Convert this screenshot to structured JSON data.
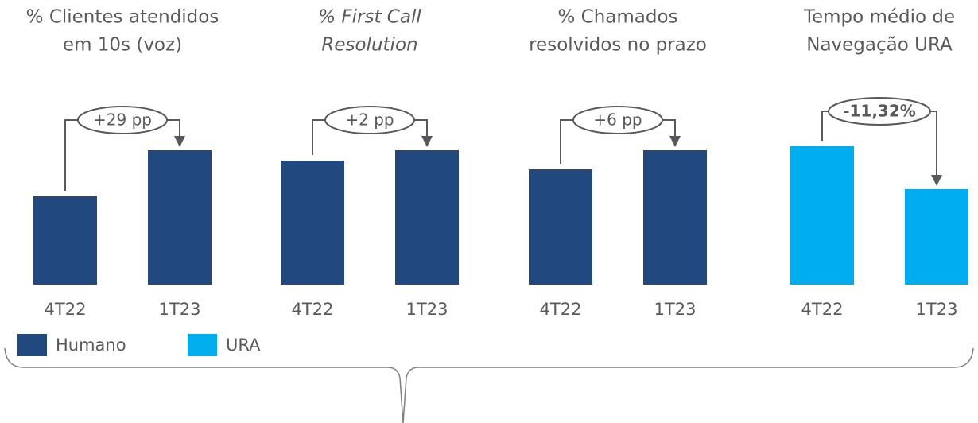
{
  "chart_data": [
    {
      "type": "bar",
      "title": [
        "% Clientes atendidos",
        "em 10s (voz)"
      ],
      "categories": [
        "4T22",
        "1T23"
      ],
      "values": [
        111,
        169
      ],
      "color": "#21487f",
      "ylim": [
        0,
        200
      ],
      "annotation": "+29 pp"
    },
    {
      "type": "bar",
      "title": [
        "% First Call",
        "Resolution"
      ],
      "title_italic": true,
      "categories": [
        "4T22",
        "1T23"
      ],
      "values": [
        156,
        169
      ],
      "color": "#21487f",
      "ylim": [
        0,
        200
      ],
      "annotation": "+2 pp"
    },
    {
      "type": "bar",
      "title": [
        "% Chamados",
        "resolvidos no prazo"
      ],
      "categories": [
        "4T22",
        "1T23"
      ],
      "values": [
        145,
        169
      ],
      "color": "#21487f",
      "ylim": [
        0,
        200
      ],
      "annotation": "+6 pp"
    },
    {
      "type": "bar",
      "title": [
        "Tempo médio de",
        "Navegação URA"
      ],
      "categories": [
        "4T22",
        "1T23"
      ],
      "values": [
        174,
        120
      ],
      "color": "#00adef",
      "ylim": [
        0,
        200
      ],
      "annotation": "-11,32%",
      "annotation_bold": true
    }
  ],
  "legend": [
    {
      "name": "Humano",
      "color": "#21487f"
    },
    {
      "name": "URA",
      "color": "#00adef"
    }
  ]
}
